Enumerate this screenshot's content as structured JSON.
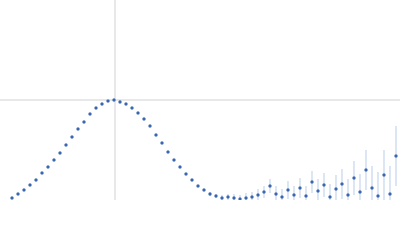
{
  "chart_data": {
    "type": "scatter",
    "xlim": [
      0,
      400
    ],
    "ylim": [
      0,
      200
    ],
    "xticks": [
      115
    ],
    "yticks": [
      100
    ],
    "grid": true,
    "tick_labels": false,
    "error_color": "#a9bfe3",
    "series": [
      {
        "color": "#3a66b0",
        "x": [
          12,
          18,
          24,
          30,
          36,
          42,
          48,
          54,
          60,
          66,
          72,
          78,
          84,
          90,
          96,
          102,
          108,
          114,
          120,
          126,
          132,
          138,
          144,
          150,
          156,
          162,
          168,
          174,
          180,
          186,
          192,
          198,
          204,
          210,
          216,
          222,
          228,
          234,
          240,
          246,
          252,
          258,
          264,
          270,
          276,
          282,
          288,
          294,
          300,
          306,
          312,
          318,
          324,
          330,
          336,
          342,
          348,
          354,
          360,
          366,
          372,
          378,
          384,
          390,
          396
        ],
        "values": [
          2,
          6,
          10,
          15,
          20,
          27,
          33,
          40,
          47,
          55,
          63,
          71,
          78,
          86,
          92,
          96,
          99,
          100,
          98,
          96,
          92,
          87,
          81,
          74,
          65,
          57,
          48,
          40,
          33,
          26,
          20,
          14,
          10,
          6,
          4,
          2,
          3,
          2,
          1,
          2,
          3,
          5,
          8,
          14,
          6,
          3,
          10,
          5,
          12,
          4,
          18,
          9,
          15,
          3,
          11,
          16,
          5,
          22,
          8,
          30,
          12,
          4,
          25,
          6,
          44
        ],
        "errors": [
          1,
          1,
          1,
          1,
          1,
          1,
          1,
          1,
          1,
          1,
          1,
          1,
          1,
          1,
          1,
          1,
          1,
          1,
          1,
          1,
          1,
          1,
          1,
          1,
          1,
          1,
          1,
          1,
          1,
          1,
          1,
          1,
          1,
          2,
          2,
          3,
          3,
          4,
          4,
          5,
          5,
          6,
          6,
          7,
          8,
          8,
          9,
          9,
          10,
          10,
          11,
          12,
          12,
          13,
          14,
          15,
          16,
          17,
          18,
          20,
          22,
          24,
          25,
          28,
          30
        ]
      }
    ]
  }
}
